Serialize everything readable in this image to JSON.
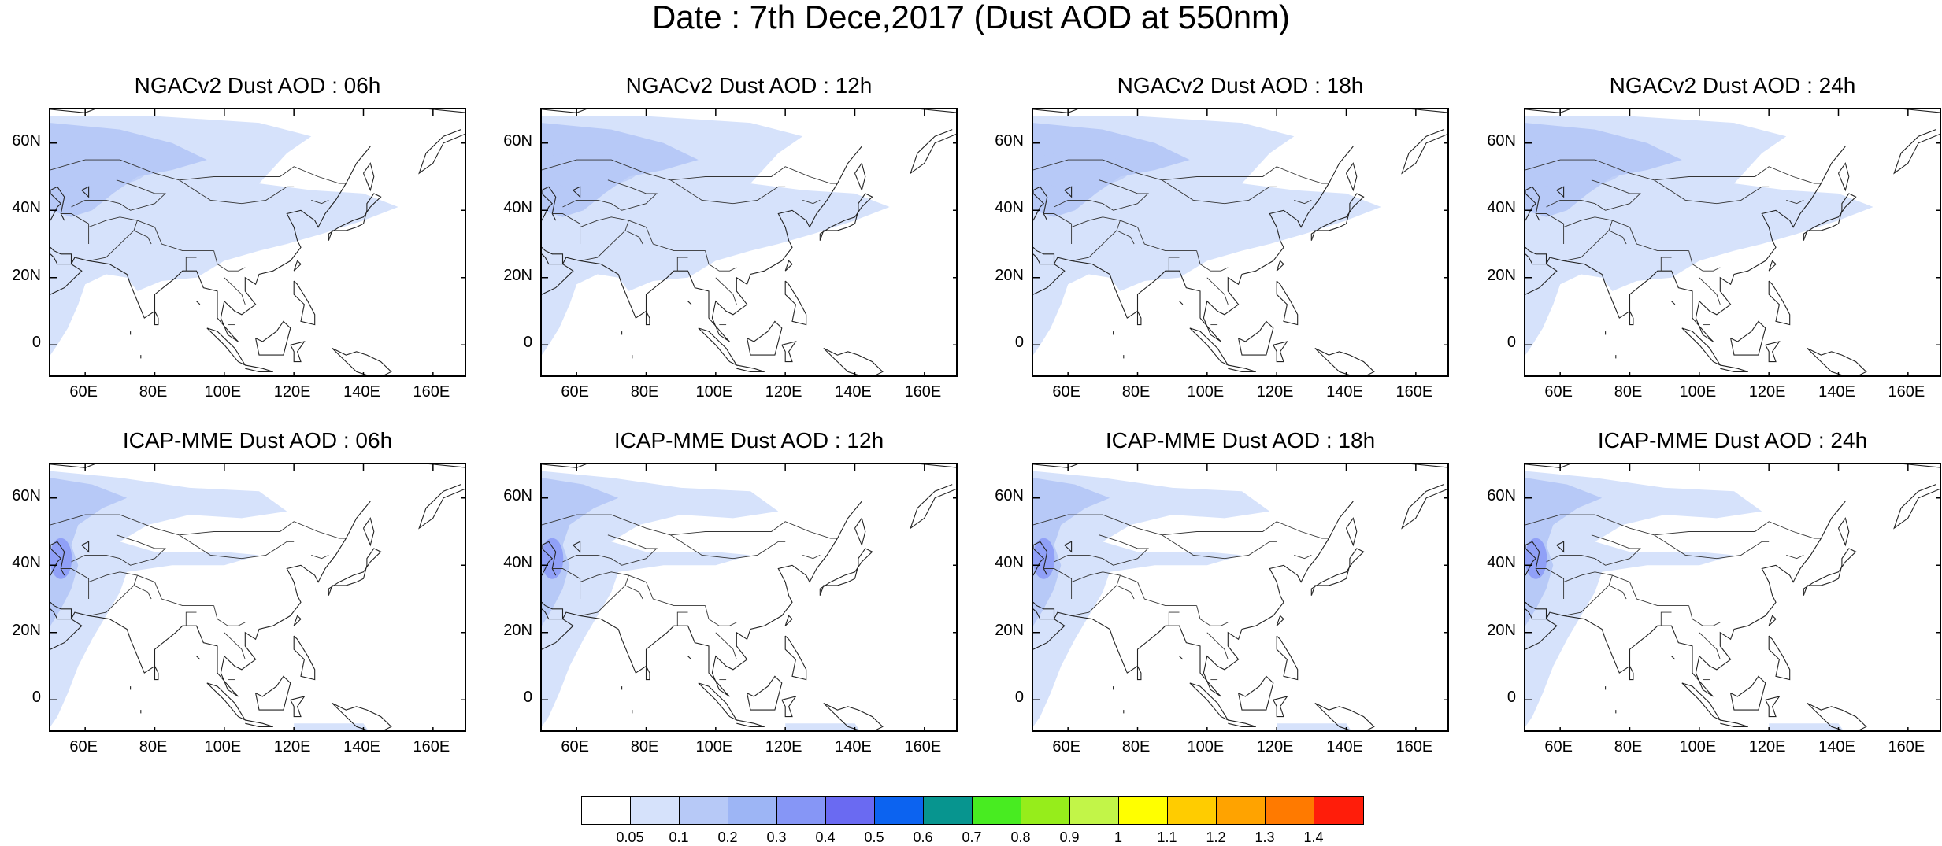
{
  "title": "Date : 7th Dece,2017 (Dust AOD at 550nm)",
  "panels": [
    {
      "title": "NGACv2 Dust AOD : 06h",
      "model": "ngac"
    },
    {
      "title": "NGACv2 Dust AOD : 12h",
      "model": "ngac"
    },
    {
      "title": "NGACv2 Dust AOD : 18h",
      "model": "ngac"
    },
    {
      "title": "NGACv2 Dust AOD : 24h",
      "model": "ngac"
    },
    {
      "title": "ICAP-MME Dust AOD : 06h",
      "model": "icap"
    },
    {
      "title": "ICAP-MME Dust AOD : 12h",
      "model": "icap"
    },
    {
      "title": "ICAP-MME Dust AOD : 18h",
      "model": "icap"
    },
    {
      "title": "ICAP-MME Dust AOD : 24h",
      "model": "icap"
    }
  ],
  "axes": {
    "lat_ticks": [
      "60N",
      "40N",
      "20N",
      "0"
    ],
    "lon_ticks": [
      "60E",
      "80E",
      "100E",
      "120E",
      "140E",
      "160E"
    ],
    "lon_range": [
      50,
      170
    ],
    "lat_range": [
      -10,
      70
    ]
  },
  "colorbar": {
    "colors": [
      "#ffffff",
      "#d6e2fb",
      "#b7c9f7",
      "#9db5f5",
      "#8696f6",
      "#6a6af2",
      "#0c63f0",
      "#07958f",
      "#48ec21",
      "#96ed1b",
      "#c2f548",
      "#ffff00",
      "#ffcc00",
      "#ffa300",
      "#ff7a00",
      "#ff1d0a"
    ],
    "labels": [
      "0.05",
      "0.1",
      "0.2",
      "0.3",
      "0.4",
      "0.5",
      "0.6",
      "0.7",
      "0.8",
      "0.9",
      "1",
      "1.1",
      "1.2",
      "1.3",
      "1.4"
    ]
  }
}
